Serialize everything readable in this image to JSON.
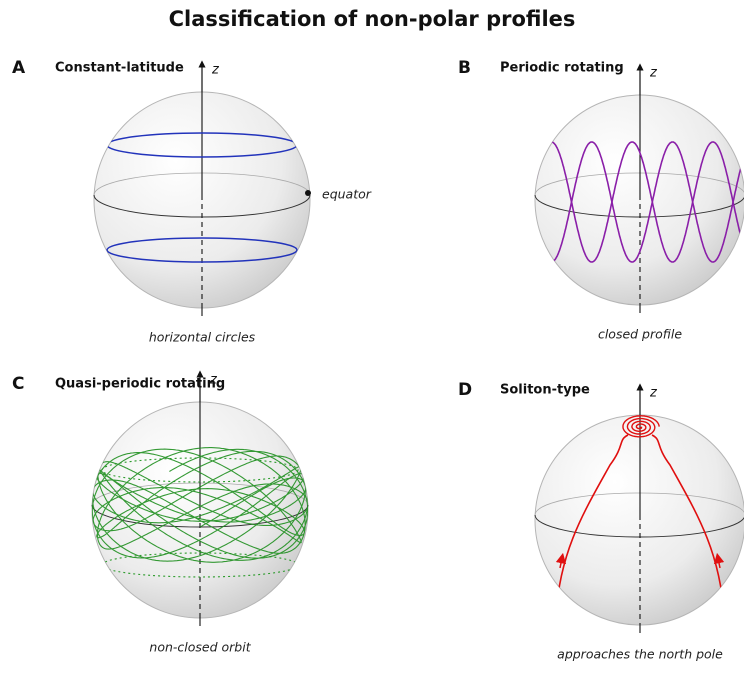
{
  "title": "Classification of non-polar profiles",
  "panels": [
    {
      "letter": "A",
      "title": "Constant-latitude",
      "axis_label": "z",
      "annotation": "equator",
      "caption": "horizontal circles"
    },
    {
      "letter": "B",
      "title": "Periodic rotating",
      "axis_label": "z",
      "caption": "closed profile"
    },
    {
      "letter": "C",
      "title": "Quasi-periodic rotating",
      "axis_label": "z",
      "caption": "non-closed orbit"
    },
    {
      "letter": "D",
      "title": "Soliton-type",
      "axis_label": "z",
      "caption": "approaches the north pole"
    }
  ]
}
